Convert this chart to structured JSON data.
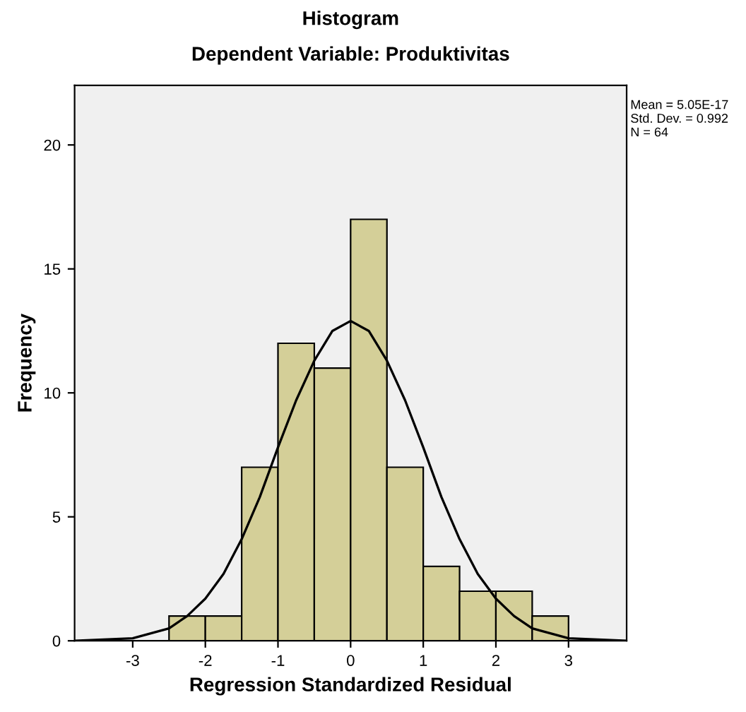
{
  "chart_data": {
    "type": "histogram",
    "title": "Histogram",
    "subtitle": "Dependent Variable: Produktivitas",
    "xlabel": "Regression Standardized Residual",
    "ylabel": "Frequency",
    "bins": [
      -2.5,
      -2.0,
      -1.5,
      -1.0,
      -0.5,
      0.0,
      0.5,
      1.0,
      1.5,
      2.0,
      2.5,
      3.0
    ],
    "values": [
      1,
      1,
      7,
      12,
      11,
      17,
      7,
      3,
      2,
      2,
      1
    ],
    "color": "#d4cf98",
    "series": [
      {
        "type": "line",
        "color": "#000000",
        "x": [
          -3.8,
          -3.0,
          -2.75,
          -2.5,
          -2.25,
          -2.0,
          -1.75,
          -1.5,
          -1.25,
          -1.0,
          -0.75,
          -0.5,
          -0.25,
          0.0,
          0.25,
          0.5,
          0.75,
          1.0,
          1.25,
          1.5,
          1.75,
          2.0,
          2.25,
          2.5,
          2.75,
          3.0,
          3.8
        ],
        "values": [
          0.0,
          0.1,
          0.3,
          0.5,
          1.0,
          1.7,
          2.7,
          4.1,
          5.8,
          7.8,
          9.7,
          11.3,
          12.5,
          12.9,
          12.5,
          11.3,
          9.7,
          7.8,
          5.8,
          4.1,
          2.7,
          1.7,
          1.0,
          0.5,
          0.3,
          0.1,
          0.0
        ]
      }
    ],
    "xlim": [
      -3.8,
      3.8
    ],
    "xticks": [
      -3,
      -2,
      -1,
      0,
      1,
      2,
      3
    ],
    "ylim": [
      0,
      22.4
    ],
    "yticks": [
      0,
      5,
      10,
      15,
      20
    ],
    "grid": false,
    "legend": false,
    "annotations": [
      "Mean = 5.05E-17\nStd. Dev. = 0.992\nN = 64"
    ]
  }
}
